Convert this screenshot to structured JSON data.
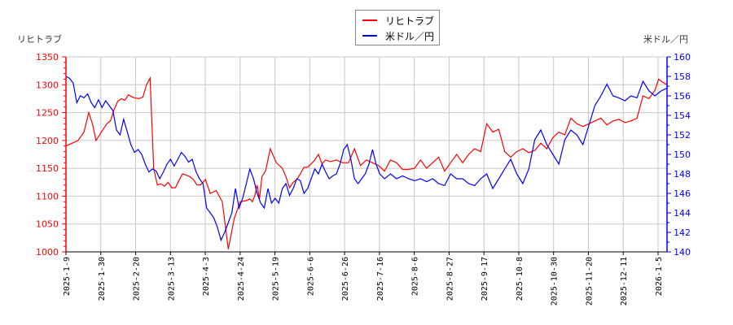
{
  "chart_data": {
    "type": "line",
    "title": "",
    "legend": {
      "position": "top-center",
      "entries": [
        {
          "name": "リヒトラブ",
          "color": "#ff0000"
        },
        {
          "name": "米ドル／円",
          "color": "#0000ff"
        }
      ]
    },
    "left_axis": {
      "label": "リヒトラブ",
      "color": "#ff0000",
      "ylim": [
        1000,
        1350
      ],
      "ticks": [
        1000,
        1050,
        1100,
        1150,
        1200,
        1250,
        1300,
        1350
      ]
    },
    "right_axis": {
      "label": "米ドル／円",
      "color": "#0000ff",
      "ylim": [
        140,
        160
      ],
      "ticks": [
        140,
        142,
        144,
        146,
        148,
        150,
        152,
        154,
        156,
        158,
        160
      ]
    },
    "x_ticks": [
      "2025-1-9",
      "2025-1-30",
      "2025-2-20",
      "2025-3-13",
      "2025-4-3",
      "2025-4-24",
      "2025-5-19",
      "2025-6-6",
      "2025-6-26",
      "2025-7-16",
      "2025-8-6",
      "2025-8-27",
      "2025-9-17",
      "2025-10-8",
      "2025-10-30",
      "2025-11-20",
      "2025-12-11",
      "2026-1-5"
    ],
    "grid": true,
    "series": [
      {
        "name": "リヒトラブ",
        "axis": "left",
        "color": "#ff0000",
        "points_x_frac": [
          0.0,
          0.01,
          0.02,
          0.03,
          0.038,
          0.044,
          0.05,
          0.056,
          0.062,
          0.068,
          0.074,
          0.08,
          0.086,
          0.092,
          0.098,
          0.104,
          0.11,
          0.116,
          0.122,
          0.128,
          0.134,
          0.14,
          0.146,
          0.152,
          0.158,
          0.164,
          0.17,
          0.176,
          0.182,
          0.188,
          0.194,
          0.2,
          0.206,
          0.212,
          0.218,
          0.224,
          0.232,
          0.24,
          0.25,
          0.26,
          0.27,
          0.28,
          0.29,
          0.3,
          0.306,
          0.31,
          0.314,
          0.318,
          0.322,
          0.326,
          0.332,
          0.34,
          0.35,
          0.36,
          0.366,
          0.372,
          0.378,
          0.384,
          0.39,
          0.396,
          0.402,
          0.408,
          0.414,
          0.42,
          0.426,
          0.432,
          0.44,
          0.45,
          0.46,
          0.47,
          0.48,
          0.49,
          0.5,
          0.51,
          0.52,
          0.53,
          0.54,
          0.55,
          0.56,
          0.57,
          0.58,
          0.59,
          0.6,
          0.61,
          0.62,
          0.63,
          0.64,
          0.65,
          0.66,
          0.67,
          0.68,
          0.69,
          0.7,
          0.71,
          0.72,
          0.73,
          0.74,
          0.75,
          0.76,
          0.77,
          0.78,
          0.79,
          0.8,
          0.81,
          0.82,
          0.83,
          0.84,
          0.85,
          0.86,
          0.87,
          0.88,
          0.89,
          0.9,
          0.91,
          0.92,
          0.93,
          0.94,
          0.95,
          0.96,
          0.97,
          0.98,
          0.986,
          0.992,
          1.0
        ],
        "values": [
          1190,
          1195,
          1200,
          1215,
          1250,
          1230,
          1200,
          1210,
          1220,
          1230,
          1235,
          1255,
          1270,
          1275,
          1272,
          1282,
          1278,
          1276,
          1275,
          1278,
          1300,
          1312,
          1150,
          1120,
          1122,
          1118,
          1125,
          1115,
          1115,
          1128,
          1140,
          1138,
          1135,
          1130,
          1120,
          1120,
          1130,
          1105,
          1110,
          1090,
          1005,
          1060,
          1090,
          1092,
          1095,
          1090,
          1100,
          1120,
          1095,
          1135,
          1145,
          1185,
          1160,
          1150,
          1135,
          1115,
          1125,
          1130,
          1140,
          1152,
          1152,
          1158,
          1165,
          1175,
          1158,
          1165,
          1162,
          1165,
          1160,
          1160,
          1185,
          1155,
          1165,
          1160,
          1155,
          1145,
          1165,
          1160,
          1148,
          1148,
          1150,
          1165,
          1150,
          1160,
          1170,
          1145,
          1160,
          1175,
          1160,
          1175,
          1185,
          1180,
          1230,
          1215,
          1220,
          1180,
          1170,
          1180,
          1185,
          1178,
          1182,
          1195,
          1185,
          1205,
          1215,
          1210,
          1240,
          1230,
          1225,
          1230,
          1235,
          1240,
          1228,
          1235,
          1238,
          1232,
          1235,
          1240,
          1280,
          1275,
          1290,
          1310,
          1305,
          1300
        ],
        "note": "approximate values traced from pixels"
      },
      {
        "name": "米ドル／円",
        "axis": "right",
        "color": "#0000ff",
        "points_x_frac": [
          0.0,
          0.006,
          0.012,
          0.018,
          0.024,
          0.03,
          0.036,
          0.042,
          0.048,
          0.054,
          0.06,
          0.066,
          0.072,
          0.078,
          0.084,
          0.09,
          0.096,
          0.102,
          0.108,
          0.114,
          0.12,
          0.126,
          0.132,
          0.138,
          0.144,
          0.15,
          0.156,
          0.162,
          0.168,
          0.174,
          0.18,
          0.186,
          0.192,
          0.198,
          0.204,
          0.21,
          0.216,
          0.222,
          0.228,
          0.234,
          0.24,
          0.246,
          0.252,
          0.258,
          0.264,
          0.27,
          0.276,
          0.282,
          0.288,
          0.294,
          0.3,
          0.306,
          0.312,
          0.318,
          0.324,
          0.33,
          0.336,
          0.342,
          0.348,
          0.354,
          0.36,
          0.366,
          0.372,
          0.378,
          0.384,
          0.39,
          0.396,
          0.402,
          0.408,
          0.414,
          0.42,
          0.426,
          0.432,
          0.438,
          0.444,
          0.45,
          0.456,
          0.462,
          0.468,
          0.474,
          0.48,
          0.486,
          0.492,
          0.498,
          0.504,
          0.51,
          0.516,
          0.522,
          0.53,
          0.54,
          0.55,
          0.56,
          0.57,
          0.58,
          0.59,
          0.6,
          0.61,
          0.62,
          0.63,
          0.64,
          0.65,
          0.66,
          0.67,
          0.68,
          0.69,
          0.7,
          0.71,
          0.72,
          0.73,
          0.74,
          0.75,
          0.76,
          0.77,
          0.78,
          0.79,
          0.8,
          0.81,
          0.82,
          0.83,
          0.84,
          0.85,
          0.86,
          0.87,
          0.88,
          0.89,
          0.9,
          0.91,
          0.92,
          0.93,
          0.94,
          0.95,
          0.96,
          0.97,
          0.98,
          0.99,
          1.0
        ],
        "values": [
          158.0,
          157.8,
          157.3,
          155.3,
          156.0,
          155.8,
          156.2,
          155.3,
          154.8,
          155.6,
          154.8,
          155.5,
          155.0,
          154.5,
          152.5,
          152.0,
          153.6,
          152.3,
          151.0,
          150.2,
          150.5,
          150.0,
          149.0,
          148.2,
          148.5,
          148.3,
          147.5,
          148.2,
          149.0,
          149.5,
          148.8,
          149.5,
          150.2,
          149.8,
          149.2,
          149.5,
          148.3,
          147.5,
          147.0,
          144.5,
          144.0,
          143.5,
          142.5,
          141.2,
          142.0,
          143.0,
          144.0,
          146.5,
          144.5,
          145.5,
          147.0,
          148.5,
          147.5,
          146.0,
          145.0,
          144.5,
          146.5,
          145.0,
          145.5,
          145.0,
          146.5,
          147.0,
          145.8,
          146.5,
          147.5,
          147.3,
          146.0,
          146.5,
          147.5,
          148.5,
          148.0,
          149.0,
          148.2,
          147.5,
          147.8,
          148.0,
          149.0,
          150.5,
          151.0,
          149.5,
          147.5,
          147.0,
          147.5,
          148.0,
          149.0,
          150.5,
          149.0,
          148.0,
          147.5,
          148.0,
          147.5,
          147.8,
          147.5,
          147.3,
          147.5,
          147.2,
          147.5,
          147.0,
          146.8,
          148.0,
          147.5,
          147.5,
          147.0,
          146.8,
          147.5,
          148.0,
          146.5,
          147.5,
          148.5,
          149.5,
          148.0,
          147.0,
          148.5,
          151.5,
          152.5,
          151.0,
          150.0,
          149.0,
          151.5,
          152.5,
          152.0,
          151.0,
          153.0,
          155.0,
          156.0,
          157.2,
          156.0,
          155.8,
          155.5,
          156.0,
          155.8,
          157.5,
          156.5,
          156.0,
          156.5,
          156.8
        ],
        "note": "approximate values traced from pixels"
      }
    ]
  }
}
